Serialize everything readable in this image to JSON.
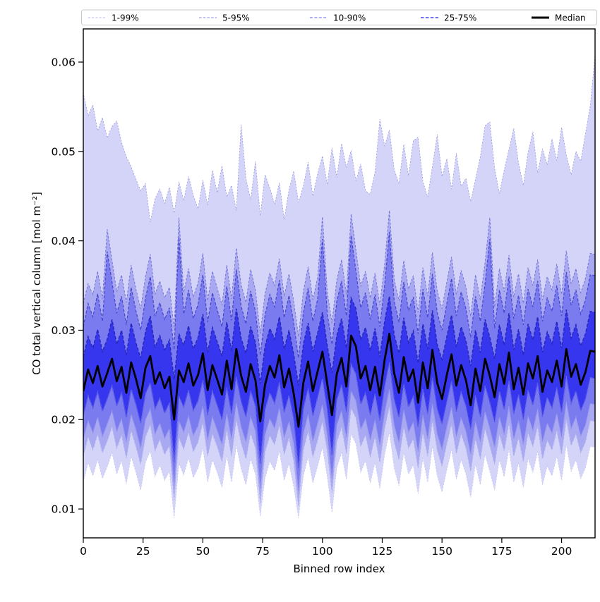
{
  "figure": {
    "background": "#ffffff"
  },
  "legend": {
    "border_color": "#c9c9c9",
    "background": "#ffffff",
    "items": [
      {
        "label": "1-99%",
        "color": "#b8b8ea",
        "dash": "3 2.2",
        "width": 1.0
      },
      {
        "label": "5-95%",
        "color": "#a0a0ee",
        "dash": "3.5 2.2",
        "width": 1.15
      },
      {
        "label": "10-90%",
        "color": "#8282f2",
        "dash": "4 2.4",
        "width": 1.35
      },
      {
        "label": "25-75%",
        "color": "#5e5eea",
        "dash": "4.5 2.4",
        "width": 1.7
      },
      {
        "label": "Median",
        "color": "#000000",
        "dash": "",
        "width": 3.0
      }
    ]
  },
  "chart_data": {
    "type": "area",
    "subtype": "percentile-fan",
    "title": "",
    "xlabel": "Binned row index",
    "ylabel": "CO total vertical column [mol m⁻²]",
    "xlim": [
      0,
      214
    ],
    "ylim": [
      0.00677,
      0.06371
    ],
    "xtick_values": [
      0,
      25,
      50,
      75,
      100,
      125,
      150,
      175,
      200
    ],
    "xtick_labels": [
      "0",
      "25",
      "50",
      "75",
      "100",
      "125",
      "150",
      "175",
      "200"
    ],
    "ytick_values": [
      0.01,
      0.02,
      0.03,
      0.04,
      0.05,
      0.06
    ],
    "ytick_labels": [
      "0.01",
      "0.02",
      "0.03",
      "0.04",
      "0.05",
      "0.06"
    ],
    "grid": false,
    "legend_position": "top-outside-row",
    "x_start": 0,
    "x_step": 2,
    "value_scale": 0.001,
    "value_unit": "mol m⁻²",
    "bands": [
      {
        "label": "1-99%",
        "lower": "p1",
        "upper": "p99",
        "fill": "#d4d4f8",
        "upper_edge": "#9898dc",
        "lower_edge": "#c6c6f4",
        "edge_width": 0.8,
        "dash": "2 2.2"
      },
      {
        "label": "5-95%",
        "lower": "p5",
        "upper": "p95",
        "fill": "#a9a9f2",
        "upper_edge": "#7474d6",
        "lower_edge": "#b0b0f2",
        "edge_width": 1.0,
        "dash": "3 2.3"
      },
      {
        "label": "10-90%",
        "lower": "p10",
        "upper": "p90",
        "fill": "#7b7bf0",
        "upper_edge": "#4646cc",
        "lower_edge": "#9494ee",
        "edge_width": 1.2,
        "dash": "4 2.4"
      },
      {
        "label": "25-75%",
        "lower": "p25",
        "upper": "p75",
        "fill": "#3636ee",
        "upper_edge": "#2828bc",
        "lower_edge": "#5c5ce6",
        "edge_width": 1.5,
        "dash": "4.5 2.4"
      }
    ],
    "median_style": {
      "label": "Median",
      "color": "#000000",
      "width": 2.8
    },
    "series": {
      "p1": [
        13.0,
        15.2,
        13.7,
        15.5,
        13.4,
        14.7,
        16.3,
        13.9,
        15.4,
        12.8,
        15.9,
        14.1,
        12.1,
        15.2,
        16.5,
        13.6,
        14.9,
        13.2,
        14.2,
        9.0,
        15.1,
        13.8,
        15.7,
        13.5,
        14.6,
        16.8,
        13.0,
        15.5,
        14.1,
        12.4,
        16.0,
        13.0,
        17.1,
        14.5,
        12.7,
        15.6,
        13.9,
        9.2,
        13.5,
        15.3,
        14.3,
        16.5,
        13.2,
        15.1,
        12.5,
        9.0,
        13.7,
        15.8,
        12.9,
        14.8,
        16.9,
        13.6,
        9.6,
        14.6,
        16.3,
        13.3,
        18.4,
        17.3,
        14.1,
        15.4,
        12.9,
        15.2,
        12.3,
        16.1,
        18.6,
        14.6,
        12.6,
        16.3,
        13.9,
        14.9,
        11.7,
        15.7,
        13.0,
        17.0,
        13.7,
        11.9,
        14.4,
        16.6,
        13.3,
        15.5,
        13.9,
        11.3,
        15.0,
        12.7,
        16.1,
        14.2,
        12.1,
        15.5,
        13.6,
        16.7,
        13.0,
        15.1,
        12.4,
        15.6,
        14.1,
        16.4,
        12.7,
        14.8,
        13.7,
        15.9,
        13.2,
        17.2,
        14.2,
        15.5,
        13.4,
        14.6,
        17.0,
        16.9
      ],
      "p5": [
        15.9,
        18.1,
        16.6,
        18.4,
        16.3,
        17.6,
        19.2,
        16.8,
        18.3,
        15.7,
        18.8,
        17.0,
        15.0,
        18.1,
        19.4,
        16.5,
        17.8,
        16.1,
        17.1,
        11.0,
        18.0,
        16.7,
        18.6,
        16.4,
        17.5,
        19.7,
        15.9,
        18.4,
        17.0,
        15.3,
        18.9,
        15.9,
        20.0,
        17.4,
        15.6,
        18.5,
        16.8,
        10.6,
        16.4,
        18.2,
        17.2,
        19.4,
        16.1,
        18.0,
        15.4,
        10.3,
        16.6,
        18.7,
        15.8,
        17.7,
        19.8,
        16.5,
        11.8,
        17.5,
        19.2,
        16.2,
        21.3,
        20.2,
        17.0,
        18.3,
        15.8,
        18.1,
        15.2,
        19.0,
        21.5,
        17.5,
        15.5,
        19.2,
        16.8,
        17.8,
        14.6,
        18.6,
        15.9,
        19.9,
        16.6,
        14.8,
        17.3,
        19.5,
        16.2,
        18.4,
        16.8,
        14.2,
        17.9,
        15.6,
        19.0,
        17.1,
        15.0,
        18.4,
        16.5,
        19.6,
        15.9,
        18.0,
        15.3,
        18.5,
        17.0,
        19.3,
        15.6,
        17.7,
        16.6,
        18.8,
        16.1,
        20.1,
        17.1,
        18.4,
        16.3,
        17.5,
        19.9,
        19.8
      ],
      "p10": [
        17.8,
        19.9,
        18.5,
        20.3,
        18.1,
        19.5,
        21.0,
        18.7,
        20.1,
        17.5,
        20.6,
        18.9,
        16.8,
        20.0,
        21.2,
        18.4,
        19.6,
        17.9,
        19.0,
        12.6,
        19.8,
        18.6,
        20.4,
        18.2,
        19.3,
        21.5,
        17.7,
        20.3,
        18.8,
        17.2,
        20.7,
        17.8,
        21.9,
        19.2,
        17.5,
        20.3,
        18.7,
        12.2,
        18.3,
        20.1,
        19.0,
        21.3,
        18.0,
        19.8,
        17.3,
        11.9,
        18.4,
        20.6,
        17.6,
        19.6,
        21.7,
        18.3,
        13.4,
        19.4,
        21.0,
        18.0,
        23.2,
        22.1,
        18.9,
        20.1,
        17.7,
        20.0,
        17.1,
        20.8,
        23.4,
        19.4,
        17.4,
        21.1,
        18.6,
        19.7,
        16.4,
        20.5,
        17.8,
        21.8,
        18.4,
        16.7,
        19.2,
        21.4,
        18.1,
        20.2,
        18.7,
        16.1,
        19.8,
        17.5,
        20.9,
        19.0,
        16.9,
        20.3,
        18.3,
        21.5,
        17.8,
        19.9,
        17.2,
        20.4,
        18.8,
        21.2,
        17.5,
        19.6,
        18.5,
        20.7,
        18.0,
        22.0,
        19.0,
        20.3,
        18.2,
        19.4,
        21.8,
        21.7
      ],
      "p25": [
        20.4,
        22.7,
        21.3,
        23.1,
        20.9,
        22.3,
        23.8,
        21.5,
        23.0,
        20.2,
        23.4,
        21.7,
        19.6,
        22.9,
        24.1,
        21.2,
        22.4,
        20.7,
        21.9,
        15.2,
        22.6,
        21.4,
        23.3,
        21.0,
        22.1,
        24.4,
        20.5,
        23.2,
        21.6,
        20.0,
        23.6,
        20.6,
        24.8,
        22.0,
        20.3,
        23.2,
        21.5,
        15.0,
        21.1,
        23.0,
        21.8,
        24.2,
        20.8,
        22.7,
        20.1,
        14.6,
        21.2,
        23.5,
        20.4,
        22.5,
        24.6,
        21.1,
        16.0,
        22.2,
        23.9,
        20.8,
        26.2,
        25.1,
        21.7,
        23.0,
        20.5,
        22.9,
        19.9,
        23.7,
        26.4,
        22.3,
        20.2,
        24.0,
        21.4,
        22.6,
        19.2,
        23.4,
        20.6,
        24.7,
        21.2,
        19.5,
        22.0,
        24.3,
        20.9,
        23.1,
        21.5,
        18.9,
        22.7,
        20.3,
        23.8,
        21.9,
        19.7,
        23.2,
        21.1,
        24.4,
        20.6,
        22.8,
        20.0,
        23.3,
        21.6,
        24.1,
        20.3,
        22.5,
        21.3,
        23.6,
        20.8,
        24.9,
        21.8,
        23.2,
        21.0,
        22.3,
        24.7,
        24.6
      ],
      "median": [
        23.2,
        25.6,
        24.1,
        26.0,
        23.7,
        25.2,
        26.8,
        24.3,
        25.9,
        23.0,
        26.4,
        24.6,
        22.4,
        25.8,
        27.1,
        24.0,
        25.3,
        23.5,
        24.8,
        20.0,
        25.5,
        24.2,
        26.3,
        23.8,
        25.0,
        27.4,
        23.3,
        26.1,
        24.5,
        22.8,
        26.6,
        23.4,
        27.9,
        24.9,
        23.1,
        26.2,
        24.4,
        19.8,
        23.9,
        26.0,
        24.7,
        27.2,
        23.6,
        25.7,
        22.9,
        19.2,
        24.1,
        26.5,
        23.2,
        25.4,
        27.6,
        24.0,
        20.5,
        25.1,
        26.9,
        23.7,
        29.4,
        28.2,
        24.6,
        26.0,
        23.3,
        25.9,
        22.7,
        26.7,
        29.6,
        25.2,
        23.0,
        27.0,
        24.3,
        25.6,
        21.9,
        26.4,
        23.5,
        27.8,
        24.1,
        22.3,
        25.0,
        27.3,
        23.8,
        26.1,
        24.4,
        21.6,
        25.7,
        23.2,
        26.8,
        24.9,
        22.5,
        26.2,
        24.0,
        27.5,
        23.4,
        25.8,
        22.8,
        26.3,
        24.6,
        27.1,
        23.1,
        25.5,
        24.2,
        26.6,
        23.7,
        27.9,
        24.8,
        26.2,
        23.9,
        25.3,
        27.7,
        27.6
      ],
      "p75": [
        27.0,
        29.3,
        28.0,
        30.1,
        27.6,
        29.0,
        31.2,
        28.4,
        30.0,
        27.2,
        30.8,
        28.6,
        26.9,
        29.8,
        31.6,
        28.1,
        29.4,
        27.8,
        28.9,
        24.5,
        29.6,
        28.3,
        30.5,
        27.9,
        29.2,
        31.8,
        27.5,
        30.3,
        28.7,
        27.1,
        30.9,
        27.7,
        32.4,
        29.1,
        27.4,
        30.4,
        28.6,
        24.0,
        28.2,
        30.2,
        29.0,
        31.5,
        27.9,
        30.0,
        27.3,
        23.8,
        28.4,
        30.8,
        27.6,
        29.7,
        32.0,
        28.3,
        25.2,
        29.4,
        31.3,
        28.0,
        33.6,
        32.4,
        28.9,
        30.3,
        27.7,
        30.2,
        27.0,
        31.0,
        33.8,
        29.5,
        27.4,
        31.4,
        28.6,
        29.9,
        26.3,
        30.7,
        27.9,
        32.2,
        28.4,
        26.7,
        29.3,
        31.7,
        28.1,
        30.4,
        28.8,
        26.0,
        30.0,
        27.5,
        31.2,
        29.2,
        26.8,
        30.6,
        28.3,
        31.9,
        27.8,
        30.1,
        27.2,
        30.7,
        28.9,
        31.5,
        27.5,
        29.8,
        28.5,
        31.0,
        28.0,
        32.3,
        29.1,
        30.6,
        28.2,
        29.6,
        32.1,
        32.0
      ],
      "p90": [
        30.4,
        33.0,
        31.5,
        34.1,
        31.0,
        38.8,
        35.4,
        31.9,
        33.8,
        30.6,
        34.8,
        32.2,
        30.0,
        33.6,
        36.0,
        31.6,
        33.1,
        31.2,
        32.5,
        27.8,
        40.4,
        31.8,
        34.5,
        31.3,
        32.9,
        36.2,
        30.9,
        34.2,
        32.3,
        30.4,
        34.9,
        31.1,
        36.8,
        32.7,
        30.7,
        34.4,
        32.1,
        27.2,
        31.7,
        34.0,
        32.6,
        35.6,
        31.4,
        33.9,
        30.8,
        26.9,
        31.9,
        34.7,
        31.0,
        33.5,
        40.2,
        31.9,
        28.4,
        33.2,
        35.5,
        31.6,
        40.6,
        36.6,
        32.5,
        34.2,
        31.2,
        34.0,
        30.4,
        35.0,
        41.0,
        33.3,
        30.9,
        35.4,
        32.2,
        33.7,
        29.6,
        34.6,
        31.4,
        36.3,
        32.0,
        30.0,
        33.0,
        35.8,
        31.6,
        34.3,
        32.4,
        29.2,
        33.8,
        31.0,
        35.2,
        40.2,
        30.2,
        34.5,
        31.9,
        36.0,
        31.3,
        33.9,
        30.6,
        34.6,
        32.6,
        35.5,
        31.0,
        33.6,
        32.1,
        35.0,
        31.6,
        36.5,
        32.8,
        34.5,
        31.8,
        33.4,
        36.2,
        36.1
      ],
      "p95": [
        33.0,
        35.2,
        34.0,
        36.6,
        33.5,
        41.3,
        37.8,
        34.3,
        36.2,
        33.1,
        37.3,
        34.6,
        32.4,
        36.0,
        38.5,
        34.0,
        35.5,
        33.6,
        34.8,
        30.2,
        42.6,
        34.2,
        36.9,
        33.7,
        35.3,
        38.6,
        33.3,
        36.6,
        34.7,
        32.8,
        37.3,
        33.5,
        39.2,
        35.1,
        33.1,
        36.8,
        34.5,
        29.6,
        34.1,
        36.4,
        35.0,
        38.0,
        33.8,
        36.3,
        33.2,
        29.3,
        34.3,
        37.1,
        33.4,
        35.9,
        42.7,
        34.3,
        30.8,
        35.6,
        37.9,
        34.0,
        43.0,
        39.0,
        34.9,
        36.6,
        33.6,
        36.4,
        32.8,
        37.4,
        43.4,
        35.7,
        33.3,
        37.8,
        34.6,
        36.1,
        32.0,
        37.0,
        33.8,
        38.7,
        34.4,
        32.4,
        35.4,
        38.2,
        34.0,
        36.7,
        34.8,
        31.6,
        36.2,
        33.4,
        37.6,
        42.6,
        32.6,
        36.9,
        34.3,
        38.4,
        33.7,
        36.3,
        33.0,
        37.0,
        35.0,
        37.9,
        33.4,
        36.0,
        34.5,
        37.4,
        34.0,
        38.9,
        35.2,
        36.9,
        34.2,
        35.8,
        38.6,
        38.5
      ],
      "p99": [
        56.6,
        54.0,
        55.2,
        52.3,
        53.8,
        51.5,
        52.8,
        53.4,
        51.0,
        49.4,
        48.3,
        46.9,
        45.6,
        46.4,
        42.1,
        44.7,
        45.8,
        44.2,
        46.0,
        43.1,
        46.6,
        44.5,
        47.2,
        45.1,
        43.6,
        46.8,
        44.0,
        47.9,
        45.4,
        48.4,
        44.9,
        46.2,
        43.4,
        53.0,
        47.0,
        44.6,
        48.9,
        42.8,
        47.4,
        45.9,
        44.1,
        46.5,
        42.4,
        45.7,
        47.8,
        44.3,
        46.1,
        48.8,
        45.0,
        47.5,
        49.5,
        46.3,
        50.4,
        47.1,
        50.9,
        48.2,
        50.1,
        46.7,
        48.6,
        45.6,
        45.2,
        47.7,
        53.6,
        50.6,
        52.4,
        48.0,
        46.4,
        50.8,
        47.3,
        51.2,
        51.6,
        46.6,
        44.9,
        48.3,
        51.9,
        47.2,
        49.2,
        45.8,
        49.8,
        46.1,
        47.0,
        44.4,
        46.9,
        49.4,
        52.9,
        53.3,
        48.1,
        45.3,
        47.9,
        50.2,
        52.6,
        48.7,
        46.2,
        49.9,
        52.2,
        47.6,
        50.3,
        48.5,
        51.4,
        49.0,
        52.7,
        49.6,
        47.4,
        50.0,
        48.9,
        52.0,
        55.1,
        60.8
      ]
    }
  }
}
